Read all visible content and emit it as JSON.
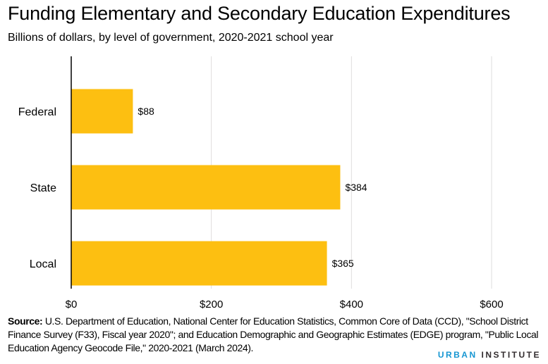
{
  "chart_data": {
    "type": "bar",
    "orientation": "horizontal",
    "title": "Funding Elementary and Secondary Education Expenditures",
    "subtitle": "Billions of dollars, by level of government, 2020-2021 school year",
    "categories": [
      "Federal",
      "State",
      "Local"
    ],
    "values": [
      88,
      384,
      365
    ],
    "data_labels": [
      "$88",
      "$384",
      "$365"
    ],
    "xlim": [
      0,
      670
    ],
    "xticks": [
      0,
      200,
      400,
      600
    ],
    "xtick_labels": [
      "$0",
      "$200",
      "$400",
      "$600"
    ],
    "grid": true,
    "bar_color": "#fdbf11",
    "grid_color": "#dedddd"
  },
  "source": {
    "label": "Source:",
    "text": "U.S. Department of Education, National Center for Education Statistics, Common Core of Data (CCD), \"School District Finance Survey (F33), Fiscal year 2020\"; and Education Demographic and Geographic Estimates (EDGE) program, \"Public Local Education Agency Geocode File,\" 2020-2021 (March 2024)."
  },
  "logo": {
    "part1": "URBAN",
    "part2": "INSTITUTE",
    "color1": "#1696d2",
    "color2": "#332d2f"
  }
}
